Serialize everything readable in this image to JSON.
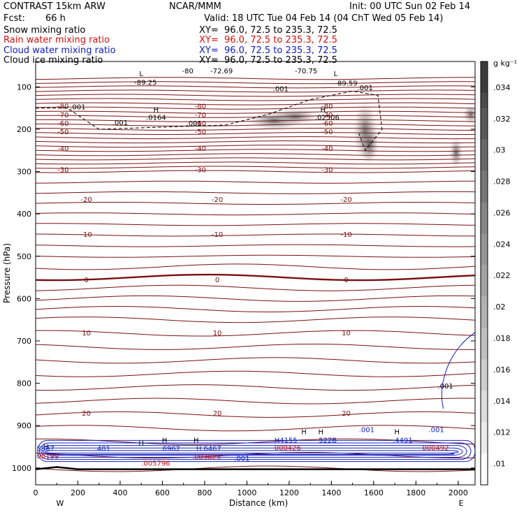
{
  "header": {
    "model": "CONTRAST 15km ARW",
    "org": "NCAR/MMM",
    "init": "Init: 00 UTC Sun 02 Feb 14",
    "fcst_label": "Fcst:",
    "fcst_value": "66 h",
    "valid": "Valid: 18 UTC Tue 04 Feb 14 (04 ChT Wed 05 Feb 14)",
    "fields": [
      {
        "name": "Snow mixing ratio",
        "xy": "XY=  96.0, 72.5 to 235.3, 72.5",
        "color": "#000000"
      },
      {
        "name": "Rain water mixing ratio",
        "xy": "XY=  96.0, 72.5 to 235.3, 72.5",
        "color": "#d01010"
      },
      {
        "name": "Cloud water mixing ratio",
        "xy": "XY=  96.0, 72.5 to 235.3, 72.5",
        "color": "#1020c0"
      },
      {
        "name": "Cloud ice mixing ratio",
        "xy": "XY=  96.0, 72.5 to 235.3, 72.5",
        "color": "#000000"
      }
    ]
  },
  "chart_data": {
    "type": "cross-section",
    "xlabel": "Distance (km)",
    "ylabel": "Pressure (hPa)",
    "xlim": [
      0,
      2080
    ],
    "ylim": [
      1040,
      40
    ],
    "x_ticks": [
      0,
      200,
      400,
      600,
      800,
      1000,
      1200,
      1400,
      1600,
      1800,
      2000
    ],
    "y_ticks": [
      100,
      200,
      300,
      400,
      500,
      600,
      700,
      800,
      900,
      1000
    ],
    "end_labels": [
      "W",
      "E"
    ],
    "colorbar": {
      "unit": "g kg⁻¹",
      "ticks": [
        ".01",
        ".012",
        ".014",
        ".016",
        ".018",
        ".02",
        ".022",
        ".024",
        ".026",
        ".028",
        ".03",
        ".032",
        ".034"
      ]
    },
    "temperature_contours": [
      {
        "label": "-80",
        "p": 145
      },
      {
        "label": "-70",
        "p": 165
      },
      {
        "label": "-60",
        "p": 185
      },
      {
        "label": "-50",
        "p": 205
      },
      {
        "label": "-40",
        "p": 245
      },
      {
        "label": "-30",
        "p": 295
      },
      {
        "label": "-20",
        "p": 365
      },
      {
        "label": "-10",
        "p": 448
      },
      {
        "label": "0",
        "p": 555
      },
      {
        "label": "10",
        "p": 680
      },
      {
        "label": "20",
        "p": 870
      }
    ],
    "annotations": [
      {
        "text": "H",
        "km": 570,
        "p": 160
      },
      {
        "text": ".0164",
        "km": 570,
        "p": 178
      },
      {
        "text": "H",
        "km": 1360,
        "p": 160
      },
      {
        "text": ".02506",
        "km": 1380,
        "p": 178
      },
      {
        "text": "L",
        "km": 500,
        "p": 75
      },
      {
        "text": "-89.25",
        "km": 520,
        "p": 95
      },
      {
        "text": "L",
        "km": 1420,
        "p": 75
      },
      {
        "text": "-89.59",
        "km": 1470,
        "p": 97
      },
      {
        "text": "-72.69",
        "km": 880,
        "p": 68
      },
      {
        "text": "-70.75",
        "km": 1280,
        "p": 68
      },
      {
        "text": "-80",
        "km": 720,
        "p": 68
      },
      {
        "text": ".001",
        "km": 1160,
        "p": 110
      },
      {
        "text": ".001",
        "km": 1560,
        "p": 108
      },
      {
        "text": ".001",
        "km": 200,
        "p": 153
      },
      {
        "text": ".001",
        "km": 400,
        "p": 190
      },
      {
        "text": ".001",
        "km": 750,
        "p": 192
      },
      {
        "text": ".001",
        "km": 1940,
        "p": 812
      },
      {
        "text": "H",
        "km": 50,
        "p": 956
      },
      {
        "text": "H",
        "km": 500,
        "p": 948
      },
      {
        "text": "H",
        "km": 610,
        "p": 940
      },
      {
        "text": "H",
        "km": 760,
        "p": 940
      },
      {
        "text": "H",
        "km": 1270,
        "p": 920
      },
      {
        "text": "H",
        "km": 1350,
        "p": 920
      },
      {
        "text": "H",
        "km": 1710,
        "p": 920
      }
    ],
    "cloud_values": [
      {
        "text": "5907",
        "km": 5,
        "p": 960,
        "color": "#1020c0"
      },
      {
        "text": ".401",
        "km": 280,
        "p": 960,
        "color": "#1020c0"
      },
      {
        "text": ".6962",
        "km": 590,
        "p": 960,
        "color": "#1020c0"
      },
      {
        "text": "H.6467",
        "km": 760,
        "p": 960,
        "color": "#1020c0"
      },
      {
        "text": ".001",
        "km": 940,
        "p": 983,
        "color": "#1020c0"
      },
      {
        "text": "H4155",
        "km": 1130,
        "p": 940,
        "color": "#1020c0"
      },
      {
        "text": "522B",
        "km": 1340,
        "p": 940,
        "color": "#1020c0"
      },
      {
        "text": ".001",
        "km": 1530,
        "p": 915,
        "color": "#1020c0"
      },
      {
        "text": ".4491",
        "km": 1690,
        "p": 940,
        "color": "#1020c0"
      },
      {
        "text": ".001",
        "km": 1860,
        "p": 915,
        "color": "#1020c0"
      }
    ],
    "rain_values": [
      {
        "text": "00199",
        "km": 5,
        "p": 978,
        "color": "#d01010"
      },
      {
        "text": ".005796",
        "km": 500,
        "p": 995,
        "color": "#d01010"
      },
      {
        "text": ".003625",
        "km": 740,
        "p": 980,
        "color": "#d01010"
      },
      {
        "text": "000426",
        "km": 1130,
        "p": 958,
        "color": "#d01010"
      },
      {
        "text": "000492",
        "km": 1830,
        "p": 958,
        "color": "#d01010"
      }
    ]
  }
}
